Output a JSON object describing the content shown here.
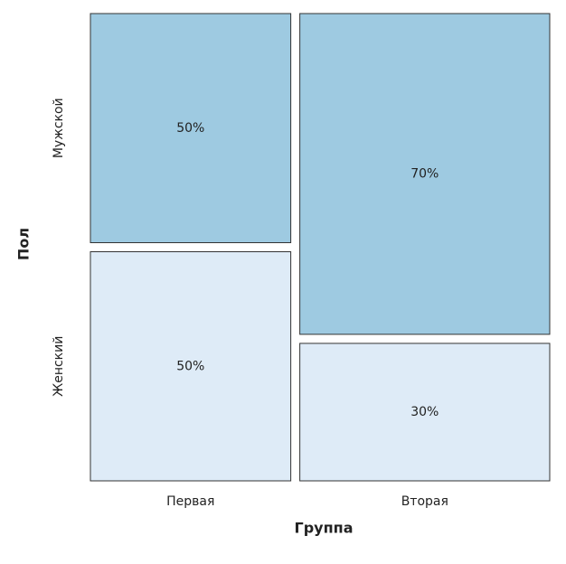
{
  "chart_data": {
    "type": "mosaic",
    "x_label": "Группа",
    "y_label": "Пол",
    "categories": [
      "Первая",
      "Вторая"
    ],
    "category_share": [
      44.5,
      55.5
    ],
    "series": [
      {
        "name": "Мужской",
        "color": "#9ecae1",
        "values": [
          50,
          70
        ],
        "value_labels": [
          "50%",
          "70%"
        ]
      },
      {
        "name": "Женский",
        "color": "#deebf7",
        "values": [
          50,
          30
        ],
        "value_labels": [
          "50%",
          "30%"
        ]
      }
    ]
  }
}
